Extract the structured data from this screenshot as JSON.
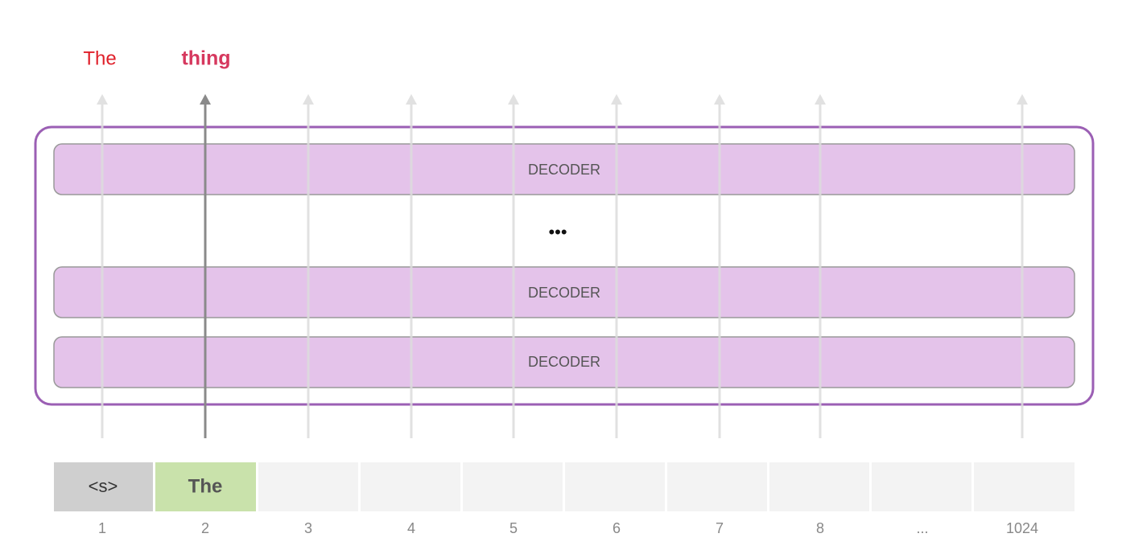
{
  "outputs": [
    "The",
    "thing"
  ],
  "decoders": [
    "DECODER",
    "DECODER",
    "DECODER"
  ],
  "ellipsis": "•••",
  "tokens": [
    "<s>",
    "The"
  ],
  "positions": [
    "1",
    "2",
    "3",
    "4",
    "5",
    "6",
    "7",
    "8",
    "...",
    "1024"
  ]
}
